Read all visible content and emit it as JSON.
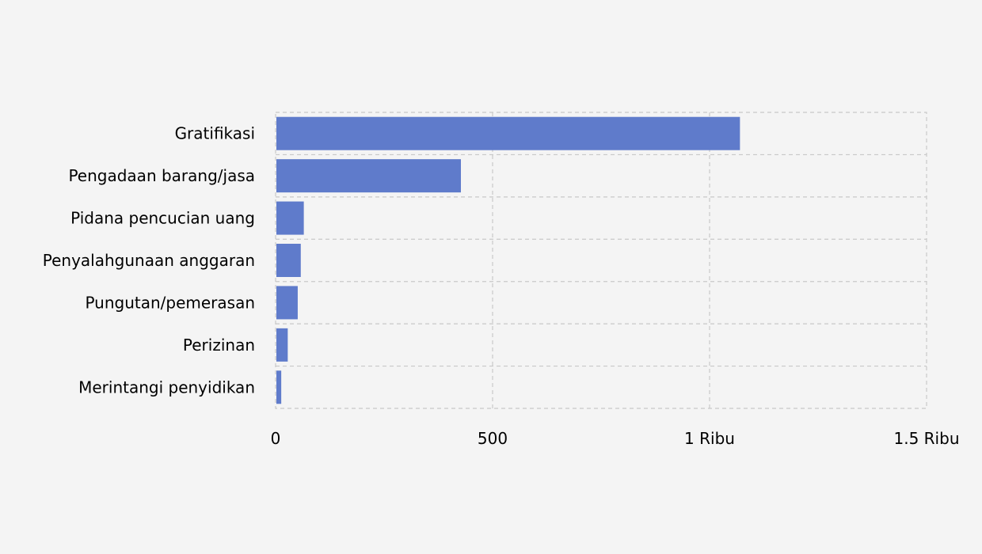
{
  "chart_data": {
    "type": "bar",
    "orientation": "horizontal",
    "categories": [
      "Gratifikasi",
      "Pengadaan barang/jasa",
      "Pidana pencucian uang",
      "Penyalahgunaan anggaran",
      "Pungutan/pemerasan",
      "Perizinan",
      "Merintangi penyidikan"
    ],
    "values": [
      1070,
      427,
      65,
      58,
      51,
      28,
      13
    ],
    "xlim": [
      0,
      1500
    ],
    "x_ticks": [
      0,
      500,
      1000,
      1500
    ],
    "x_tick_labels": [
      "0",
      "500",
      "1 Ribu",
      "1.5 Ribu"
    ],
    "grid": true,
    "bar_color": "#5f7bcb",
    "grid_color": "#c8c8c8",
    "background": "#f4f4f4"
  }
}
